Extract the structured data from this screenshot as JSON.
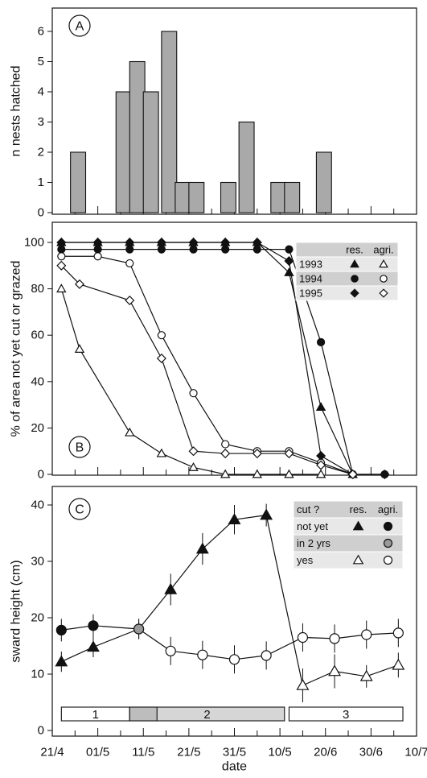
{
  "chart_data": [
    {
      "panel_label": "A",
      "type": "bar",
      "ylabel": "n nests hatched",
      "xlabel": "",
      "ylim": [
        0,
        7
      ],
      "yticks": [
        0,
        1,
        2,
        3,
        4,
        5,
        6
      ],
      "bin_days": 3.33,
      "bars": [
        {
          "start": "25/4",
          "value": 2
        },
        {
          "start": "5/5",
          "value": 4
        },
        {
          "start": "8/5",
          "value": 5
        },
        {
          "start": "11/5",
          "value": 4
        },
        {
          "start": "15/5",
          "value": 6
        },
        {
          "start": "18/5",
          "value": 1
        },
        {
          "start": "21/5",
          "value": 1
        },
        {
          "start": "28/5",
          "value": 1
        },
        {
          "start": "1/6",
          "value": 3
        },
        {
          "start": "8/6",
          "value": 1
        },
        {
          "start": "11/6",
          "value": 1
        },
        {
          "start": "18/6",
          "value": 2
        }
      ]
    },
    {
      "panel_label": "B",
      "type": "line",
      "ylabel": "% of area not yet cut or grazed",
      "xlabel": "",
      "ylim": [
        0,
        110
      ],
      "yticks": [
        0,
        20,
        40,
        60,
        80,
        100
      ],
      "legend": {
        "headers": [
          "",
          "res.",
          "agri."
        ],
        "rows": [
          {
            "year": "1993",
            "res_symbol": "▲",
            "agri_symbol": "△"
          },
          {
            "year": "1994",
            "res_symbol": "●",
            "agri_symbol": "○"
          },
          {
            "year": "1995",
            "res_symbol": "◆",
            "agri_symbol": "◇"
          }
        ],
        "placement": "top-right"
      },
      "series": [
        {
          "year": "1993",
          "group": "res.",
          "marker": "triangle",
          "filled": true,
          "points": [
            [
              "23/4",
              100
            ],
            [
              "1/5",
              100
            ],
            [
              "8/5",
              100
            ],
            [
              "15/5",
              100
            ],
            [
              "22/5",
              100
            ],
            [
              "29/5",
              100
            ],
            [
              "5/6",
              100
            ],
            [
              "12/6",
              87
            ],
            [
              "19/6",
              29
            ],
            [
              "26/6",
              0
            ]
          ]
        },
        {
          "year": "1994",
          "group": "res.",
          "marker": "circle",
          "filled": true,
          "points": [
            [
              "23/4",
              97
            ],
            [
              "1/5",
              97
            ],
            [
              "8/5",
              97
            ],
            [
              "15/5",
              97
            ],
            [
              "22/5",
              97
            ],
            [
              "29/5",
              97
            ],
            [
              "5/6",
              97
            ],
            [
              "12/6",
              97
            ],
            [
              "19/6",
              57
            ],
            [
              "26/6",
              0
            ],
            [
              "3/7",
              0
            ]
          ]
        },
        {
          "year": "1995",
          "group": "res.",
          "marker": "diamond",
          "filled": true,
          "points": [
            [
              "23/4",
              100
            ],
            [
              "1/5",
              100
            ],
            [
              "8/5",
              100
            ],
            [
              "15/5",
              100
            ],
            [
              "22/5",
              100
            ],
            [
              "29/5",
              100
            ],
            [
              "5/6",
              100
            ],
            [
              "12/6",
              92
            ],
            [
              "19/6",
              8
            ],
            [
              "26/6",
              0
            ],
            [
              "3/7",
              0
            ]
          ]
        },
        {
          "year": "1993",
          "group": "agri.",
          "marker": "triangle",
          "filled": false,
          "points": [
            [
              "23/4",
              80
            ],
            [
              "27/4",
              54
            ],
            [
              "8/5",
              18
            ],
            [
              "15/5",
              9
            ],
            [
              "22/5",
              3
            ],
            [
              "29/5",
              0
            ],
            [
              "5/6",
              0
            ],
            [
              "12/6",
              0
            ],
            [
              "19/6",
              0
            ]
          ]
        },
        {
          "year": "1994",
          "group": "agri.",
          "marker": "circle",
          "filled": false,
          "points": [
            [
              "23/4",
              94
            ],
            [
              "1/5",
              94
            ],
            [
              "8/5",
              91
            ],
            [
              "15/5",
              60
            ],
            [
              "22/5",
              35
            ],
            [
              "29/5",
              13
            ],
            [
              "5/6",
              10
            ],
            [
              "12/6",
              10
            ],
            [
              "19/6",
              5
            ],
            [
              "26/6",
              0
            ]
          ]
        },
        {
          "year": "1995",
          "group": "agri.",
          "marker": "diamond",
          "filled": false,
          "points": [
            [
              "23/4",
              90
            ],
            [
              "27/4",
              82
            ],
            [
              "8/5",
              75
            ],
            [
              "15/5",
              50
            ],
            [
              "22/5",
              10
            ],
            [
              "29/5",
              9
            ],
            [
              "5/6",
              9
            ],
            [
              "12/6",
              9
            ],
            [
              "19/6",
              4
            ],
            [
              "26/6",
              0
            ]
          ]
        }
      ]
    },
    {
      "panel_label": "C",
      "type": "line",
      "ylabel": "sward height (cm)",
      "xlabel": "date",
      "ylim": [
        0,
        43
      ],
      "yticks": [
        0,
        10,
        20,
        30,
        40
      ],
      "xticks": [
        "21/4",
        "01/5",
        "11/5",
        "21/5",
        "31/5",
        "10/5",
        "20/6",
        "30/6",
        "10/7"
      ],
      "legend": {
        "headers": [
          "cut ?",
          "res.",
          "agri."
        ],
        "rows": [
          {
            "label": "not yet",
            "res_symbol": "▲",
            "agri_symbol": "●"
          },
          {
            "label": "in 2 yrs",
            "res_symbol": "",
            "agri_symbol": "●"
          },
          {
            "label": "yes",
            "res_symbol": "△",
            "agri_symbol": "○"
          }
        ],
        "placement": "top-right"
      },
      "periods": [
        {
          "label": "1",
          "start": "23/4",
          "end": "8/5"
        },
        {
          "label": "2",
          "start": "8/5",
          "end": "11/6"
        },
        {
          "label": "3",
          "start": "12/6",
          "end": "7/7"
        }
      ],
      "series": [
        {
          "name": "res.",
          "points": [
            {
              "date": "23/4",
              "y": 12.2,
              "err": 1.8,
              "state": "not yet"
            },
            {
              "date": "30/4",
              "y": 14.8,
              "err": 1.8,
              "state": "not yet"
            },
            {
              "date": "10/5",
              "y": 18.0,
              "err": 1.8,
              "state": "in 2 yrs"
            },
            {
              "date": "17/5",
              "y": 25.0,
              "err": 2.8,
              "state": "not yet"
            },
            {
              "date": "24/5",
              "y": 32.2,
              "err": 2.8,
              "state": "not yet"
            },
            {
              "date": "31/5",
              "y": 37.4,
              "err": 2.6,
              "state": "not yet"
            },
            {
              "date": "7/6",
              "y": 38.2,
              "err": 2.0,
              "state": "not yet"
            },
            {
              "date": "15/6",
              "y": 8.0,
              "err": 3.0,
              "state": "yes"
            },
            {
              "date": "22/6",
              "y": 10.5,
              "err": 3.0,
              "state": "yes"
            },
            {
              "date": "29/6",
              "y": 9.6,
              "err": 2.0,
              "state": "yes"
            },
            {
              "date": "6/7",
              "y": 11.6,
              "err": 2.2,
              "state": "yes"
            }
          ]
        },
        {
          "name": "agri.",
          "points": [
            {
              "date": "23/4",
              "y": 17.8,
              "err": 2.0,
              "state": "not yet"
            },
            {
              "date": "30/4",
              "y": 18.6,
              "err": 2.0,
              "state": "not yet"
            },
            {
              "date": "10/5",
              "y": 18.0,
              "err": 1.8,
              "state": "in 2 yrs"
            },
            {
              "date": "17/5",
              "y": 14.1,
              "err": 2.5,
              "state": "yes"
            },
            {
              "date": "24/5",
              "y": 13.4,
              "err": 2.5,
              "state": "yes"
            },
            {
              "date": "31/5",
              "y": 12.6,
              "err": 2.5,
              "state": "yes"
            },
            {
              "date": "7/6",
              "y": 13.3,
              "err": 2.5,
              "state": "yes"
            },
            {
              "date": "15/6",
              "y": 16.5,
              "err": 2.5,
              "state": "yes"
            },
            {
              "date": "22/6",
              "y": 16.3,
              "err": 2.5,
              "state": "yes"
            },
            {
              "date": "29/6",
              "y": 17.0,
              "err": 2.5,
              "state": "yes"
            },
            {
              "date": "6/7",
              "y": 17.3,
              "err": 2.5,
              "state": "yes"
            }
          ]
        }
      ]
    }
  ]
}
